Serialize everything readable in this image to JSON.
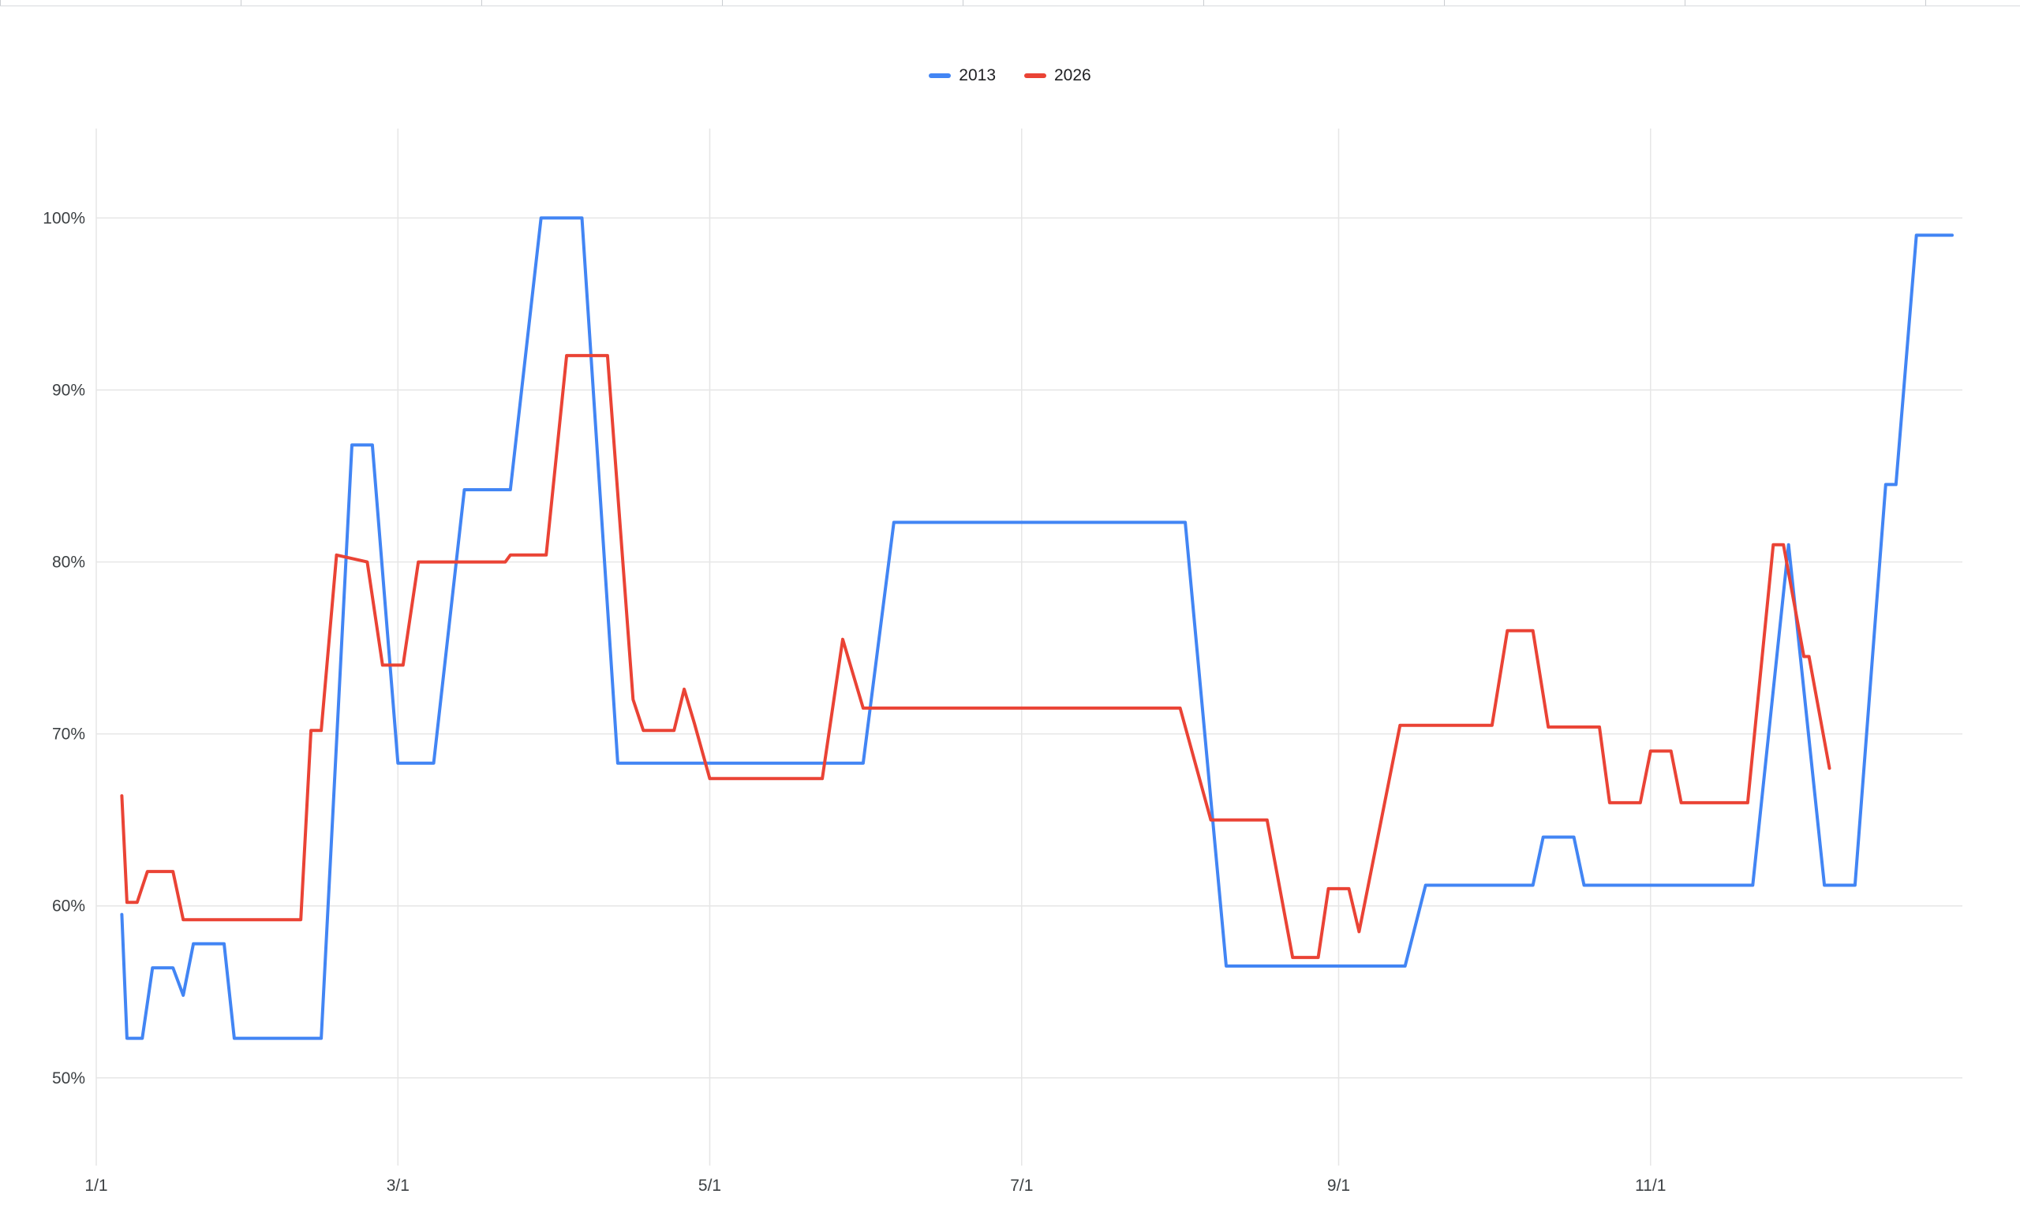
{
  "page": {
    "background_color": "#ffffff"
  },
  "chart_data": {
    "type": "line",
    "title": "",
    "legend_position": "top-center",
    "grid": true,
    "grid_color": "#e6e6e6",
    "axis_label_color": "#3c4043",
    "x_axis": {
      "tick_labels": [
        "1/1",
        "3/1",
        "5/1",
        "7/1",
        "9/1",
        "11/1"
      ],
      "tick_positions_day_of_year": [
        0,
        59,
        120,
        181,
        243,
        304
      ],
      "range_day_of_year": [
        0,
        365
      ]
    },
    "y_axis": {
      "tick_labels": [
        "50%",
        "60%",
        "70%",
        "80%",
        "90%",
        "100%"
      ],
      "tick_values": [
        50,
        60,
        70,
        80,
        90,
        100
      ],
      "range": [
        44.9,
        105.2
      ],
      "unit": "%"
    },
    "series": [
      {
        "name": "2013",
        "color": "#4285f4",
        "points_day_value": [
          [
            5,
            59.5
          ],
          [
            6,
            52.3
          ],
          [
            9,
            52.3
          ],
          [
            11,
            56.4
          ],
          [
            15,
            56.4
          ],
          [
            17,
            54.8
          ],
          [
            19,
            57.8
          ],
          [
            25,
            57.8
          ],
          [
            27,
            52.3
          ],
          [
            44,
            52.3
          ],
          [
            50,
            86.8
          ],
          [
            54,
            86.8
          ],
          [
            59,
            68.3
          ],
          [
            66,
            68.3
          ],
          [
            72,
            84.2
          ],
          [
            81,
            84.2
          ],
          [
            87,
            100
          ],
          [
            95,
            100
          ],
          [
            102,
            68.3
          ],
          [
            150,
            68.3
          ],
          [
            156,
            82.3
          ],
          [
            213,
            82.3
          ],
          [
            221,
            56.5
          ],
          [
            256,
            56.5
          ],
          [
            260,
            61.2
          ],
          [
            281,
            61.2
          ],
          [
            283,
            64
          ],
          [
            289,
            64
          ],
          [
            291,
            61.2
          ],
          [
            324,
            61.2
          ],
          [
            331,
            81
          ],
          [
            338,
            61.2
          ],
          [
            344,
            61.2
          ],
          [
            350,
            84.5
          ],
          [
            352,
            84.5
          ],
          [
            356,
            99
          ],
          [
            363,
            99
          ]
        ]
      },
      {
        "name": "2026",
        "color": "#ea4335",
        "points_day_value": [
          [
            5,
            66.4
          ],
          [
            6,
            60.2
          ],
          [
            8,
            60.2
          ],
          [
            10,
            62
          ],
          [
            15,
            62
          ],
          [
            17,
            59.2
          ],
          [
            40,
            59.2
          ],
          [
            42,
            70.2
          ],
          [
            44,
            70.2
          ],
          [
            47,
            80.4
          ],
          [
            53,
            80
          ],
          [
            56,
            74
          ],
          [
            60,
            74
          ],
          [
            63,
            80
          ],
          [
            80,
            80
          ],
          [
            81,
            80.4
          ],
          [
            88,
            80.4
          ],
          [
            92,
            92
          ],
          [
            100,
            92
          ],
          [
            105,
            72
          ],
          [
            107,
            70.2
          ],
          [
            113,
            70.2
          ],
          [
            115,
            72.6
          ],
          [
            117,
            70.6
          ],
          [
            120,
            67.4
          ],
          [
            142,
            67.4
          ],
          [
            146,
            75.5
          ],
          [
            150,
            71.5
          ],
          [
            212,
            71.5
          ],
          [
            218,
            65
          ],
          [
            229,
            65
          ],
          [
            234,
            57
          ],
          [
            239,
            57
          ],
          [
            241,
            61
          ],
          [
            245,
            61
          ],
          [
            247,
            58.5
          ],
          [
            255,
            70.5
          ],
          [
            273,
            70.5
          ],
          [
            276,
            76
          ],
          [
            281,
            76
          ],
          [
            284,
            70.4
          ],
          [
            294,
            70.4
          ],
          [
            296,
            66
          ],
          [
            302,
            66
          ],
          [
            304,
            69
          ],
          [
            308,
            69
          ],
          [
            310,
            66
          ],
          [
            323,
            66
          ],
          [
            328,
            81
          ],
          [
            330,
            81
          ],
          [
            334,
            74.5
          ],
          [
            335,
            74.5
          ],
          [
            339,
            68
          ]
        ]
      }
    ]
  }
}
